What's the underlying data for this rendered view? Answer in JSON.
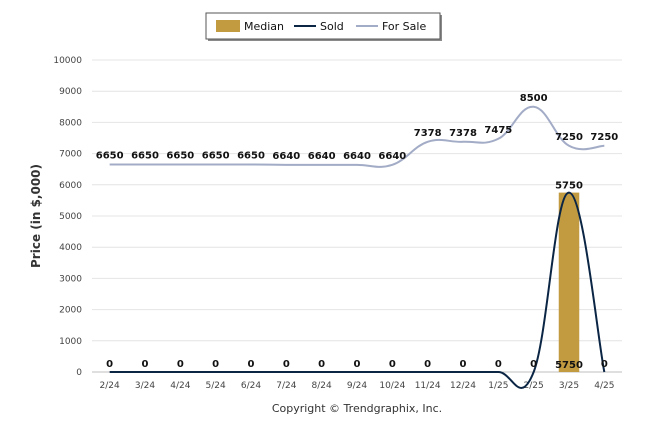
{
  "chart_data": {
    "type": "bar",
    "categories": [
      "2/24",
      "3/24",
      "4/24",
      "5/24",
      "6/24",
      "7/24",
      "8/24",
      "9/24",
      "10/24",
      "11/24",
      "12/24",
      "1/25",
      "2/25",
      "3/25",
      "4/25"
    ],
    "series": [
      {
        "name": "Median",
        "kind": "bar",
        "values": [
          0,
          0,
          0,
          0,
          0,
          0,
          0,
          0,
          0,
          0,
          0,
          0,
          0,
          5750,
          0
        ],
        "color": "#C29B40"
      },
      {
        "name": "Sold",
        "kind": "line",
        "values": [
          0,
          0,
          0,
          0,
          0,
          0,
          0,
          0,
          0,
          0,
          0,
          0,
          0,
          5750,
          0
        ],
        "color": "#0B2545"
      },
      {
        "name": "For Sale",
        "kind": "line",
        "values": [
          6650,
          6650,
          6650,
          6650,
          6650,
          6640,
          6640,
          6640,
          6640,
          7378,
          7378,
          7475,
          8500,
          7250,
          7250
        ],
        "color": "#A3ACC6"
      }
    ],
    "ylabel": "Price (in $,000)",
    "xlabel": "",
    "ylim": [
      0,
      10000
    ],
    "yticks": [
      0,
      1000,
      2000,
      3000,
      4000,
      5000,
      6000,
      7000,
      8000,
      9000,
      10000
    ],
    "grid": true,
    "legend": "top-center",
    "data_labels": {
      "for_sale": [
        "6650",
        "6650",
        "6650",
        "6650",
        "6650",
        "6640",
        "6640",
        "6640",
        "6640",
        "7378",
        "7378",
        "7475",
        "8500",
        "7250",
        "7250"
      ],
      "sold": [
        "0",
        "0",
        "0",
        "0",
        "0",
        "0",
        "0",
        "0",
        "0",
        "0",
        "0",
        "0",
        "0",
        "5750",
        "0"
      ],
      "median": [
        "",
        "",
        "",
        "",
        "",
        "",
        "",
        "",
        "",
        "",
        "",
        "",
        "",
        "5750",
        ""
      ]
    }
  },
  "copyright": "Copyright © Trendgraphix, Inc."
}
